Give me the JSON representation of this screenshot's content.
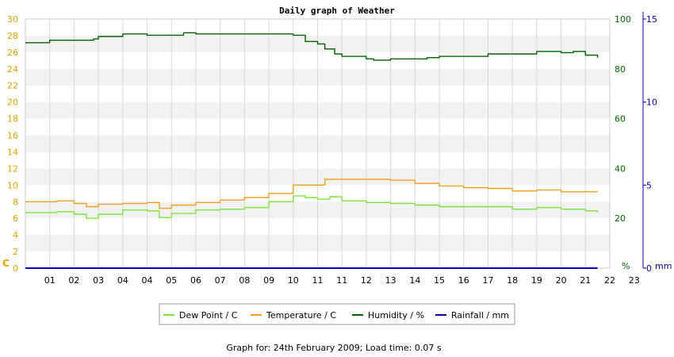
{
  "chart_data": {
    "type": "line",
    "title": "Daily graph of Weather",
    "footer": "Graph for: 24th February 2009; Load time: 0.07 s",
    "x_tick_labels": [
      "01",
      "02",
      "03",
      "04",
      "04",
      "05",
      "06",
      "07",
      "08",
      "09",
      "10",
      "11",
      "11",
      "12",
      "13",
      "14",
      "15",
      "16",
      "17",
      "18",
      "19",
      "20",
      "21",
      "22",
      "23"
    ],
    "x_range": [
      0,
      24
    ],
    "axes": {
      "left": {
        "unit_label": "C",
        "ylim": [
          0,
          30
        ],
        "ticks": [
          0,
          2,
          4,
          6,
          8,
          10,
          12,
          14,
          16,
          18,
          20,
          22,
          24,
          26,
          28,
          30
        ],
        "color": "#e6a000"
      },
      "right": {
        "unit_label": "%",
        "ylim": [
          0,
          100
        ],
        "ticks": [
          20,
          40,
          60,
          80,
          100
        ],
        "color": "#006400"
      },
      "far_right": {
        "unit_label": "mm",
        "ylim": [
          0,
          15
        ],
        "ticks": [
          0,
          5,
          10,
          15
        ],
        "color": "#0000aa"
      }
    },
    "grid": true,
    "legend_position": "bottom-center",
    "series": [
      {
        "name": "Dew Point / C",
        "axis": "left",
        "color": "#7ee43c",
        "x": [
          0,
          1.3,
          2.0,
          2.5,
          3.0,
          4.0,
          5.0,
          5.5,
          6.0,
          7.0,
          8.0,
          9.0,
          10.0,
          11.0,
          11.5,
          12.0,
          12.5,
          13.0,
          14.0,
          15.0,
          16.0,
          17.0,
          18.0,
          19.0,
          20.0,
          21.0,
          22.0,
          23.0,
          23.5
        ],
        "y": [
          6.7,
          6.8,
          6.5,
          6.0,
          6.5,
          7.0,
          6.9,
          6.1,
          6.6,
          7.0,
          7.1,
          7.3,
          8.0,
          8.7,
          8.5,
          8.3,
          8.6,
          8.1,
          7.9,
          7.8,
          7.6,
          7.4,
          7.4,
          7.4,
          7.1,
          7.3,
          7.1,
          6.9,
          6.7
        ]
      },
      {
        "name": "Temperature / C",
        "axis": "left",
        "color": "#f0a020",
        "x": [
          0,
          1.3,
          2.0,
          2.5,
          3.0,
          4.0,
          5.0,
          5.5,
          6.0,
          7.0,
          8.0,
          9.0,
          10.0,
          11.0,
          11.8,
          12.3,
          13.0,
          14.0,
          15.0,
          16.0,
          17.0,
          18.0,
          19.0,
          20.0,
          21.0,
          22.0,
          23.0,
          23.5
        ],
        "y": [
          8.0,
          8.1,
          7.8,
          7.4,
          7.7,
          7.8,
          7.9,
          7.2,
          7.6,
          7.9,
          8.2,
          8.5,
          9.0,
          10.0,
          10.0,
          10.7,
          10.7,
          10.7,
          10.6,
          10.2,
          9.9,
          9.7,
          9.6,
          9.3,
          9.4,
          9.2,
          9.2,
          9.2
        ]
      },
      {
        "name": "Humidity / %",
        "axis": "right",
        "color": "#006400",
        "x": [
          0,
          1.0,
          2.0,
          2.8,
          3.0,
          4.0,
          4.3,
          5.0,
          6.0,
          6.5,
          7.0,
          8.0,
          9.0,
          10.0,
          11.0,
          11.5,
          12.0,
          12.3,
          12.7,
          13.0,
          14.0,
          14.3,
          15.0,
          16.0,
          16.5,
          17.0,
          18.0,
          19.0,
          20.0,
          21.0,
          22.0,
          22.5,
          23.0,
          23.5
        ],
        "y": [
          90.5,
          91.5,
          91.5,
          92,
          93,
          94,
          94,
          93.5,
          93.5,
          94.5,
          94,
          94,
          94,
          94,
          93.5,
          91,
          90,
          88,
          86,
          85,
          84,
          83.5,
          84,
          84,
          84.5,
          85,
          85,
          86,
          86,
          87,
          86.5,
          87,
          85.5,
          84.5
        ]
      },
      {
        "name": "Rainfall / mm",
        "axis": "far_right",
        "color": "#0000aa",
        "x": [
          0,
          23.5
        ],
        "y": [
          0,
          0
        ]
      }
    ]
  }
}
